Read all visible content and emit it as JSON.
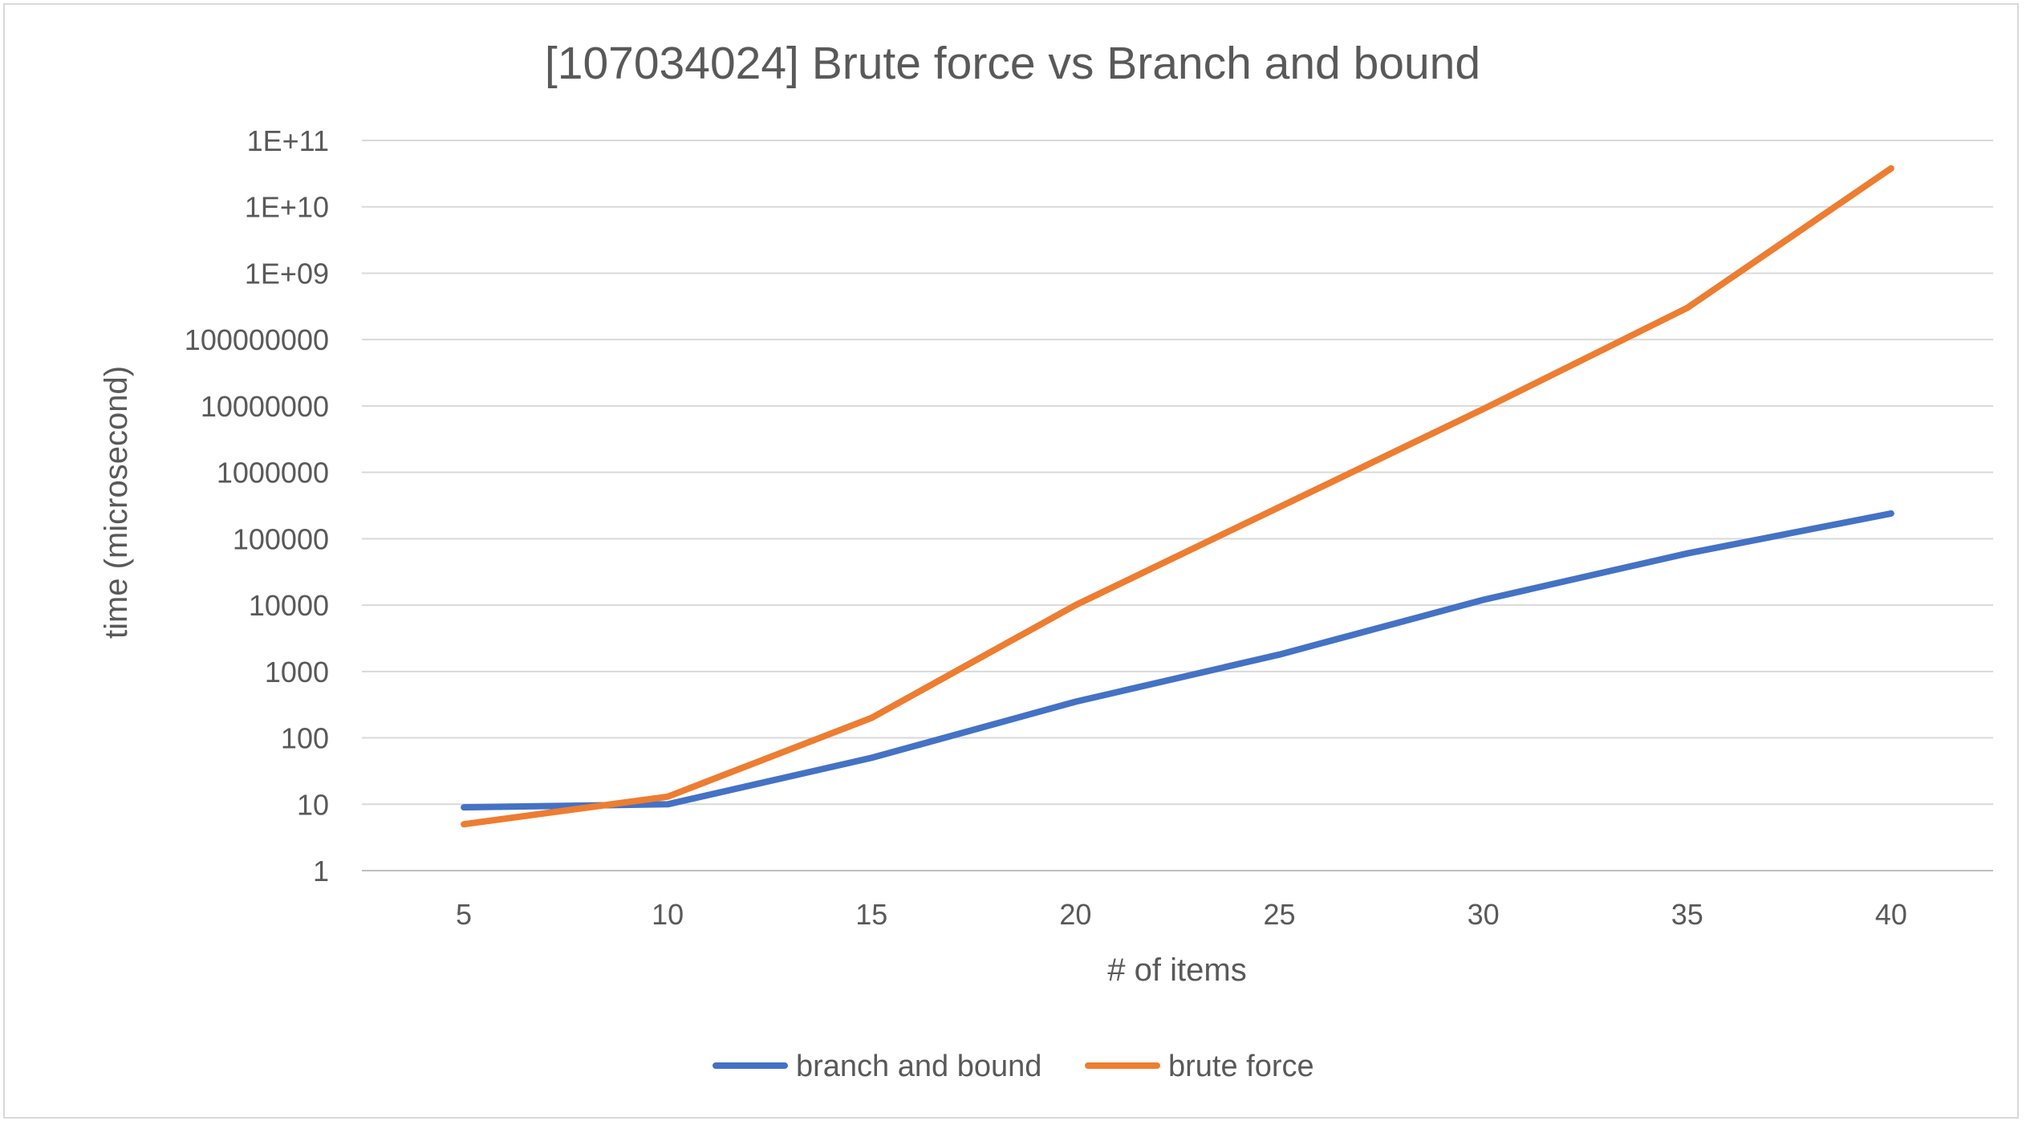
{
  "chart_data": {
    "type": "line",
    "title": "[107034024] Brute force vs Branch and bound",
    "xlabel": "# of items",
    "ylabel": "time (microsecond)",
    "yscale": "log",
    "ylim": [
      1,
      100000000000
    ],
    "categories": [
      "5",
      "10",
      "15",
      "20",
      "25",
      "30",
      "35",
      "40"
    ],
    "y_tick_labels": [
      "1",
      "10",
      "100",
      "1000",
      "10000",
      "100000",
      "1000000",
      "10000000",
      "100000000",
      "1E+09",
      "1E+10",
      "1E+11"
    ],
    "series": [
      {
        "name": "branch and bound",
        "color": "#4472c4",
        "values": [
          9,
          10,
          50,
          350,
          1800,
          12000,
          60000,
          240000
        ]
      },
      {
        "name": "brute force",
        "color": "#ed7d31",
        "values": [
          5,
          13,
          200,
          10000,
          300000,
          9000000,
          300000000,
          38000000000
        ]
      }
    ],
    "grid": true,
    "legend_position": "bottom"
  }
}
